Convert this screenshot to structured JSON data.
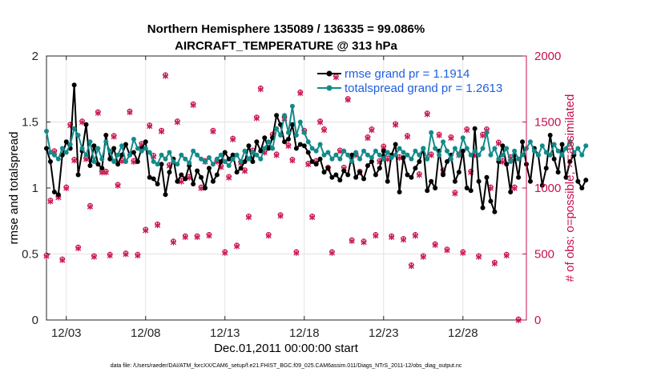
{
  "chart_data": {
    "type": "line",
    "title_line1": "Northern Hemisphere 135089 / 136335 = 99.086%",
    "title_line2": "AIRCRAFT_TEMPERATURE @ 313 hPa",
    "xlabel": "Dec.01,2011 00:00:00 start",
    "ylabel_left": "rmse and totalspread",
    "ylabel_right": "# of obs: o=possible; ×=assimilated",
    "footnote": "data file: /Users/raeder/DAI/ATM_forcXX/CAM6_setup/f.e21.FHIST_BGC.f09_025.CAM6assim.011/Diags_NTrS_2011-12/obs_diag_output.nc",
    "xlim": [
      1.75,
      32.0
    ],
    "x_ticks": [
      3,
      8,
      13,
      18,
      23,
      28
    ],
    "x_tick_labels": [
      "12/03",
      "12/08",
      "12/13",
      "12/18",
      "12/23",
      "12/28"
    ],
    "ylim_left": [
      0,
      2
    ],
    "y_ticks_left": [
      0,
      0.5,
      1,
      1.5,
      2
    ],
    "y_tick_labels_left": [
      "0",
      "0.5",
      "1",
      "1.5",
      "2"
    ],
    "ylim_right": [
      0,
      2000
    ],
    "y_ticks_right": [
      0,
      500,
      1000,
      1500,
      2000
    ],
    "y_tick_labels_right": [
      "0",
      "500",
      "1000",
      "1500",
      "2000"
    ],
    "x_start": 1.75,
    "x_step": 0.25,
    "series": [
      {
        "name": "rmse grand pr = 1.1914",
        "label": "rmse grand pr = 1.1914",
        "color": "#000000",
        "values": [
          1.3,
          1.2,
          0.97,
          0.95,
          1.25,
          1.35,
          1.3,
          1.78,
          1.1,
          1.28,
          1.48,
          1.17,
          1.32,
          1.18,
          1.15,
          1.4,
          1.22,
          1.3,
          1.18,
          1.25,
          1.33,
          1.25,
          1.27,
          1.2,
          1.3,
          1.35,
          1.08,
          1.07,
          1.03,
          1.18,
          0.95,
          1.12,
          1.22,
          1.05,
          1.1,
          1.07,
          1.17,
          1.03,
          1.13,
          1.08,
          1.0,
          1.15,
          1.05,
          1.1,
          1.2,
          1.27,
          1.22,
          1.25,
          1.12,
          1.15,
          1.2,
          1.32,
          1.2,
          1.35,
          1.28,
          1.38,
          1.3,
          1.38,
          1.55,
          1.48,
          1.35,
          1.37,
          1.48,
          1.3,
          1.33,
          1.32,
          1.27,
          1.2,
          1.18,
          1.22,
          1.12,
          1.15,
          1.08,
          1.1,
          1.06,
          1.13,
          1.1,
          1.25,
          1.08,
          1.12,
          1.07,
          1.17,
          1.2,
          1.1,
          1.15,
          1.28,
          1.05,
          1.25,
          1.33,
          0.97,
          1.23,
          1.1,
          1.08,
          1.15,
          1.2,
          1.3,
          0.98,
          1.05,
          1.0,
          1.28,
          1.1,
          1.2,
          1.25,
          1.05,
          1.12,
          1.28,
          1.0,
          0.98,
          1.45,
          1.05,
          0.85,
          1.08,
          0.9,
          0.82,
          1.2,
          1.32,
          1.18,
          0.97,
          1.25,
          1.08,
          1.35,
          1.18,
          1.05,
          1.3,
          1.25,
          1.02,
          1.15,
          1.4,
          1.22,
          1.12,
          1.33,
          1.08,
          1.2,
          1.25,
          1.05,
          1.0,
          1.06
        ]
      },
      {
        "name": "totalspread grand pr = 1.2613",
        "label": "totalspread grand pr = 1.2613",
        "color": "#138a8a",
        "values": [
          1.43,
          1.27,
          1.25,
          1.22,
          1.3,
          1.27,
          1.33,
          1.45,
          1.4,
          1.3,
          1.25,
          1.35,
          1.2,
          1.3,
          1.22,
          1.35,
          1.28,
          1.2,
          1.25,
          1.32,
          1.2,
          1.25,
          1.37,
          1.3,
          1.28,
          1.3,
          1.27,
          1.2,
          1.18,
          1.25,
          1.22,
          1.27,
          1.2,
          1.18,
          1.25,
          1.22,
          1.19,
          1.28,
          1.25,
          1.22,
          1.2,
          1.23,
          1.18,
          1.22,
          1.25,
          1.2,
          1.17,
          1.22,
          1.25,
          1.2,
          1.28,
          1.22,
          1.27,
          1.25,
          1.22,
          1.3,
          1.35,
          1.3,
          1.45,
          1.4,
          1.55,
          1.42,
          1.62,
          1.4,
          1.5,
          1.42,
          1.35,
          1.3,
          1.28,
          1.33,
          1.25,
          1.27,
          1.22,
          1.25,
          1.22,
          1.28,
          1.25,
          1.2,
          1.27,
          1.22,
          1.28,
          1.25,
          1.23,
          1.28,
          1.25,
          1.22,
          1.27,
          1.23,
          1.25,
          1.3,
          1.27,
          1.25,
          1.22,
          1.28,
          1.25,
          1.3,
          1.22,
          1.42,
          1.3,
          1.25,
          1.35,
          1.28,
          1.22,
          1.3,
          1.25,
          1.38,
          1.3,
          1.25,
          1.28,
          1.25,
          1.3,
          1.42,
          1.25,
          1.3,
          1.22,
          1.25,
          1.3,
          1.2,
          1.28,
          1.22,
          1.25,
          1.3,
          1.35,
          1.28,
          1.25,
          1.32,
          1.27,
          1.25,
          1.33,
          1.28,
          1.25,
          1.3,
          1.35,
          1.27,
          1.3,
          1.25,
          1.32
        ]
      }
    ],
    "obs_count": {
      "color": "#c8104a",
      "label": "# of obs (o=possible; ×=assimilated)",
      "points": [
        [
          1.75,
          485
        ],
        [
          2.0,
          900
        ],
        [
          2.25,
          1275
        ],
        [
          2.5,
          930
        ],
        [
          2.75,
          455
        ],
        [
          3.0,
          1000
        ],
        [
          3.25,
          1475
        ],
        [
          3.5,
          1210
        ],
        [
          3.75,
          545
        ],
        [
          4.0,
          1500
        ],
        [
          4.25,
          1220
        ],
        [
          4.5,
          860
        ],
        [
          4.75,
          480
        ],
        [
          5.0,
          1570
        ],
        [
          5.25,
          1120
        ],
        [
          5.5,
          1120
        ],
        [
          5.75,
          490
        ],
        [
          6.0,
          1390
        ],
        [
          6.25,
          1020
        ],
        [
          6.5,
          1205
        ],
        [
          6.75,
          500
        ],
        [
          7.0,
          1575
        ],
        [
          7.25,
          1200
        ],
        [
          7.5,
          490
        ],
        [
          7.75,
          1330
        ],
        [
          8.0,
          680
        ],
        [
          8.25,
          1470
        ],
        [
          8.5,
          1240
        ],
        [
          8.75,
          720
        ],
        [
          9.0,
          1430
        ],
        [
          9.25,
          1850
        ],
        [
          9.5,
          1170
        ],
        [
          9.75,
          590
        ],
        [
          10.0,
          1500
        ],
        [
          10.25,
          1050
        ],
        [
          10.5,
          630
        ],
        [
          10.75,
          1080
        ],
        [
          11.0,
          1630
        ],
        [
          11.25,
          630
        ],
        [
          11.5,
          1000
        ],
        [
          11.75,
          1200
        ],
        [
          12.0,
          640
        ],
        [
          12.25,
          1430
        ],
        [
          12.5,
          1200
        ],
        [
          12.75,
          1160
        ],
        [
          13.0,
          510
        ],
        [
          13.25,
          1080
        ],
        [
          13.5,
          1370
        ],
        [
          13.75,
          560
        ],
        [
          14.0,
          1190
        ],
        [
          14.25,
          1130
        ],
        [
          14.5,
          780
        ],
        [
          14.75,
          1280
        ],
        [
          15.0,
          1530
        ],
        [
          15.25,
          1750
        ],
        [
          15.5,
          1270
        ],
        [
          15.75,
          640
        ],
        [
          16.0,
          1400
        ],
        [
          16.25,
          1250
        ],
        [
          16.5,
          790
        ],
        [
          16.75,
          1530
        ],
        [
          17.0,
          1320
        ],
        [
          17.25,
          1210
        ],
        [
          17.5,
          510
        ],
        [
          17.75,
          1720
        ],
        [
          18.0,
          1430
        ],
        [
          18.25,
          1180
        ],
        [
          18.5,
          780
        ],
        [
          18.75,
          1200
        ],
        [
          19.0,
          1500
        ],
        [
          19.25,
          1440
        ],
        [
          19.5,
          1150
        ],
        [
          19.75,
          510
        ],
        [
          20.0,
          1840
        ],
        [
          20.25,
          1280
        ],
        [
          20.5,
          1150
        ],
        [
          20.75,
          1670
        ],
        [
          21.0,
          600
        ],
        [
          21.25,
          1250
        ],
        [
          21.5,
          1120
        ],
        [
          21.75,
          590
        ],
        [
          22.0,
          1380
        ],
        [
          22.25,
          1440
        ],
        [
          22.5,
          640
        ],
        [
          22.75,
          1200
        ],
        [
          23.0,
          1310
        ],
        [
          23.25,
          1220
        ],
        [
          23.5,
          630
        ],
        [
          23.75,
          1480
        ],
        [
          24.0,
          1230
        ],
        [
          24.25,
          610
        ],
        [
          24.5,
          1390
        ],
        [
          24.75,
          410
        ],
        [
          25.0,
          640
        ],
        [
          25.25,
          1100
        ],
        [
          25.5,
          480
        ],
        [
          25.75,
          1560
        ],
        [
          26.0,
          1250
        ],
        [
          26.25,
          570
        ],
        [
          26.5,
          1400
        ],
        [
          26.75,
          1130
        ],
        [
          27.0,
          530
        ],
        [
          27.25,
          1380
        ],
        [
          27.5,
          960
        ],
        [
          27.75,
          1250
        ],
        [
          28.0,
          510
        ],
        [
          28.25,
          1440
        ],
        [
          28.5,
          1120
        ],
        [
          28.75,
          1250
        ],
        [
          29.0,
          480
        ],
        [
          29.25,
          1400
        ],
        [
          29.5,
          1440
        ],
        [
          29.75,
          1000
        ],
        [
          30.0,
          430
        ],
        [
          30.25,
          1340
        ],
        [
          30.5,
          1200
        ],
        [
          30.75,
          490
        ],
        [
          31.0,
          1230
        ],
        [
          31.25,
          1000
        ],
        [
          31.5,
          0
        ]
      ]
    }
  }
}
